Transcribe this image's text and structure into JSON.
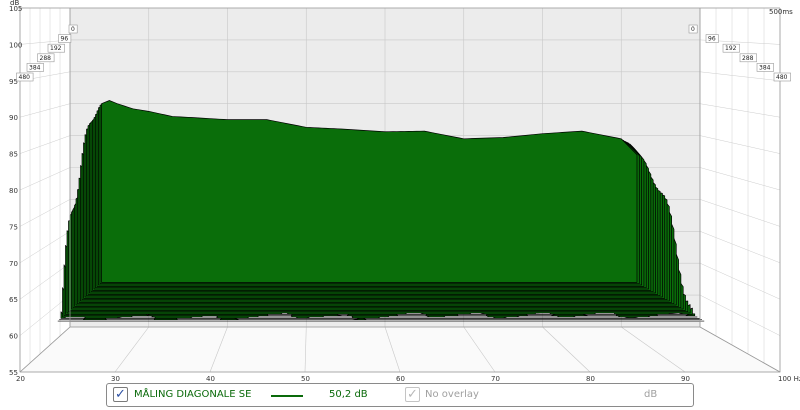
{
  "chart_data": {
    "type": "area",
    "style": "waterfall",
    "title": "",
    "xlabel": "",
    "ylabel": "",
    "y_unit": "dB",
    "x_unit": "Hz",
    "time_unit_label": "500ms",
    "xlim": [
      20,
      100
    ],
    "ylim": [
      55,
      105
    ],
    "x_ticks": [
      "20",
      "30",
      "40",
      "50",
      "60",
      "70",
      "80",
      "90",
      "100 Hz"
    ],
    "y_ticks": [
      "55",
      "60",
      "65",
      "70",
      "75",
      "80",
      "85",
      "90",
      "95",
      "100",
      "105"
    ],
    "time_slice_labels": [
      "0",
      "96",
      "192",
      "288",
      "384",
      "480"
    ],
    "grid": true,
    "fill_color": "#0a6e0a",
    "outline_color": "#000000",
    "slice_count": 30,
    "front_slice": {
      "name": "MÅLING DIAGONALE SE",
      "x": [
        24,
        25,
        26,
        28,
        30,
        33,
        36,
        40,
        45,
        50,
        55,
        60,
        65,
        70,
        75,
        80,
        85,
        90,
        92
      ],
      "y": [
        90.0,
        90.5,
        90.0,
        89.2,
        88.8,
        88.0,
        87.8,
        87.5,
        87.5,
        86.3,
        86.0,
        85.6,
        85.7,
        84.5,
        84.7,
        85.3,
        85.7,
        84.5,
        82.0
      ]
    },
    "floor_db": 62
  },
  "legend": {
    "series_checked": true,
    "series_name": "MÅLING DIAGONALE SE",
    "series_value": "50,2 dB",
    "overlay_checked": true,
    "overlay_label": "No overlay",
    "overlay_unit": "dB"
  },
  "icons": {
    "checkbox": "check-icon"
  }
}
